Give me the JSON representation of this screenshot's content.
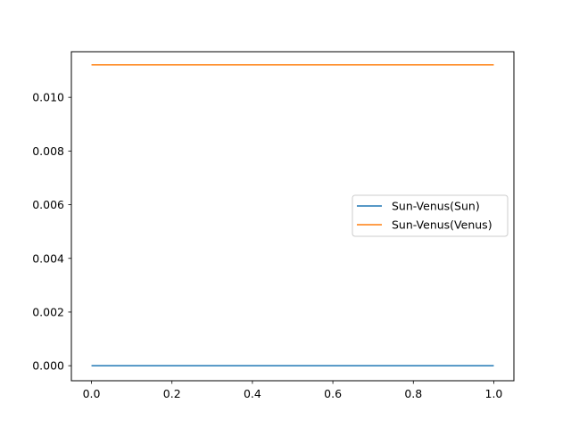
{
  "chart_data": {
    "type": "line",
    "title": "",
    "xlabel": "",
    "ylabel": "",
    "xlim": [
      -0.05,
      1.05
    ],
    "ylim": [
      -0.00056,
      0.0117
    ],
    "xticks": [
      0.0,
      0.2,
      0.4,
      0.6,
      0.8,
      1.0
    ],
    "xtick_labels": [
      "0.0",
      "0.2",
      "0.4",
      "0.6",
      "0.8",
      "1.0"
    ],
    "yticks": [
      0.0,
      0.002,
      0.004,
      0.006,
      0.008,
      0.01
    ],
    "ytick_labels": [
      "0.000",
      "0.002",
      "0.004",
      "0.006",
      "0.008",
      "0.010"
    ],
    "grid": false,
    "legend_position": "center-right",
    "series": [
      {
        "name": "Sun-Venus(Sun)",
        "color": "#1f77b4",
        "x": [
          0.0,
          1.0
        ],
        "y": [
          0.0,
          0.0
        ]
      },
      {
        "name": "Sun-Venus(Venus)",
        "color": "#ff7f0e",
        "x": [
          0.0,
          1.0
        ],
        "y": [
          0.01121,
          0.01121
        ]
      }
    ]
  }
}
